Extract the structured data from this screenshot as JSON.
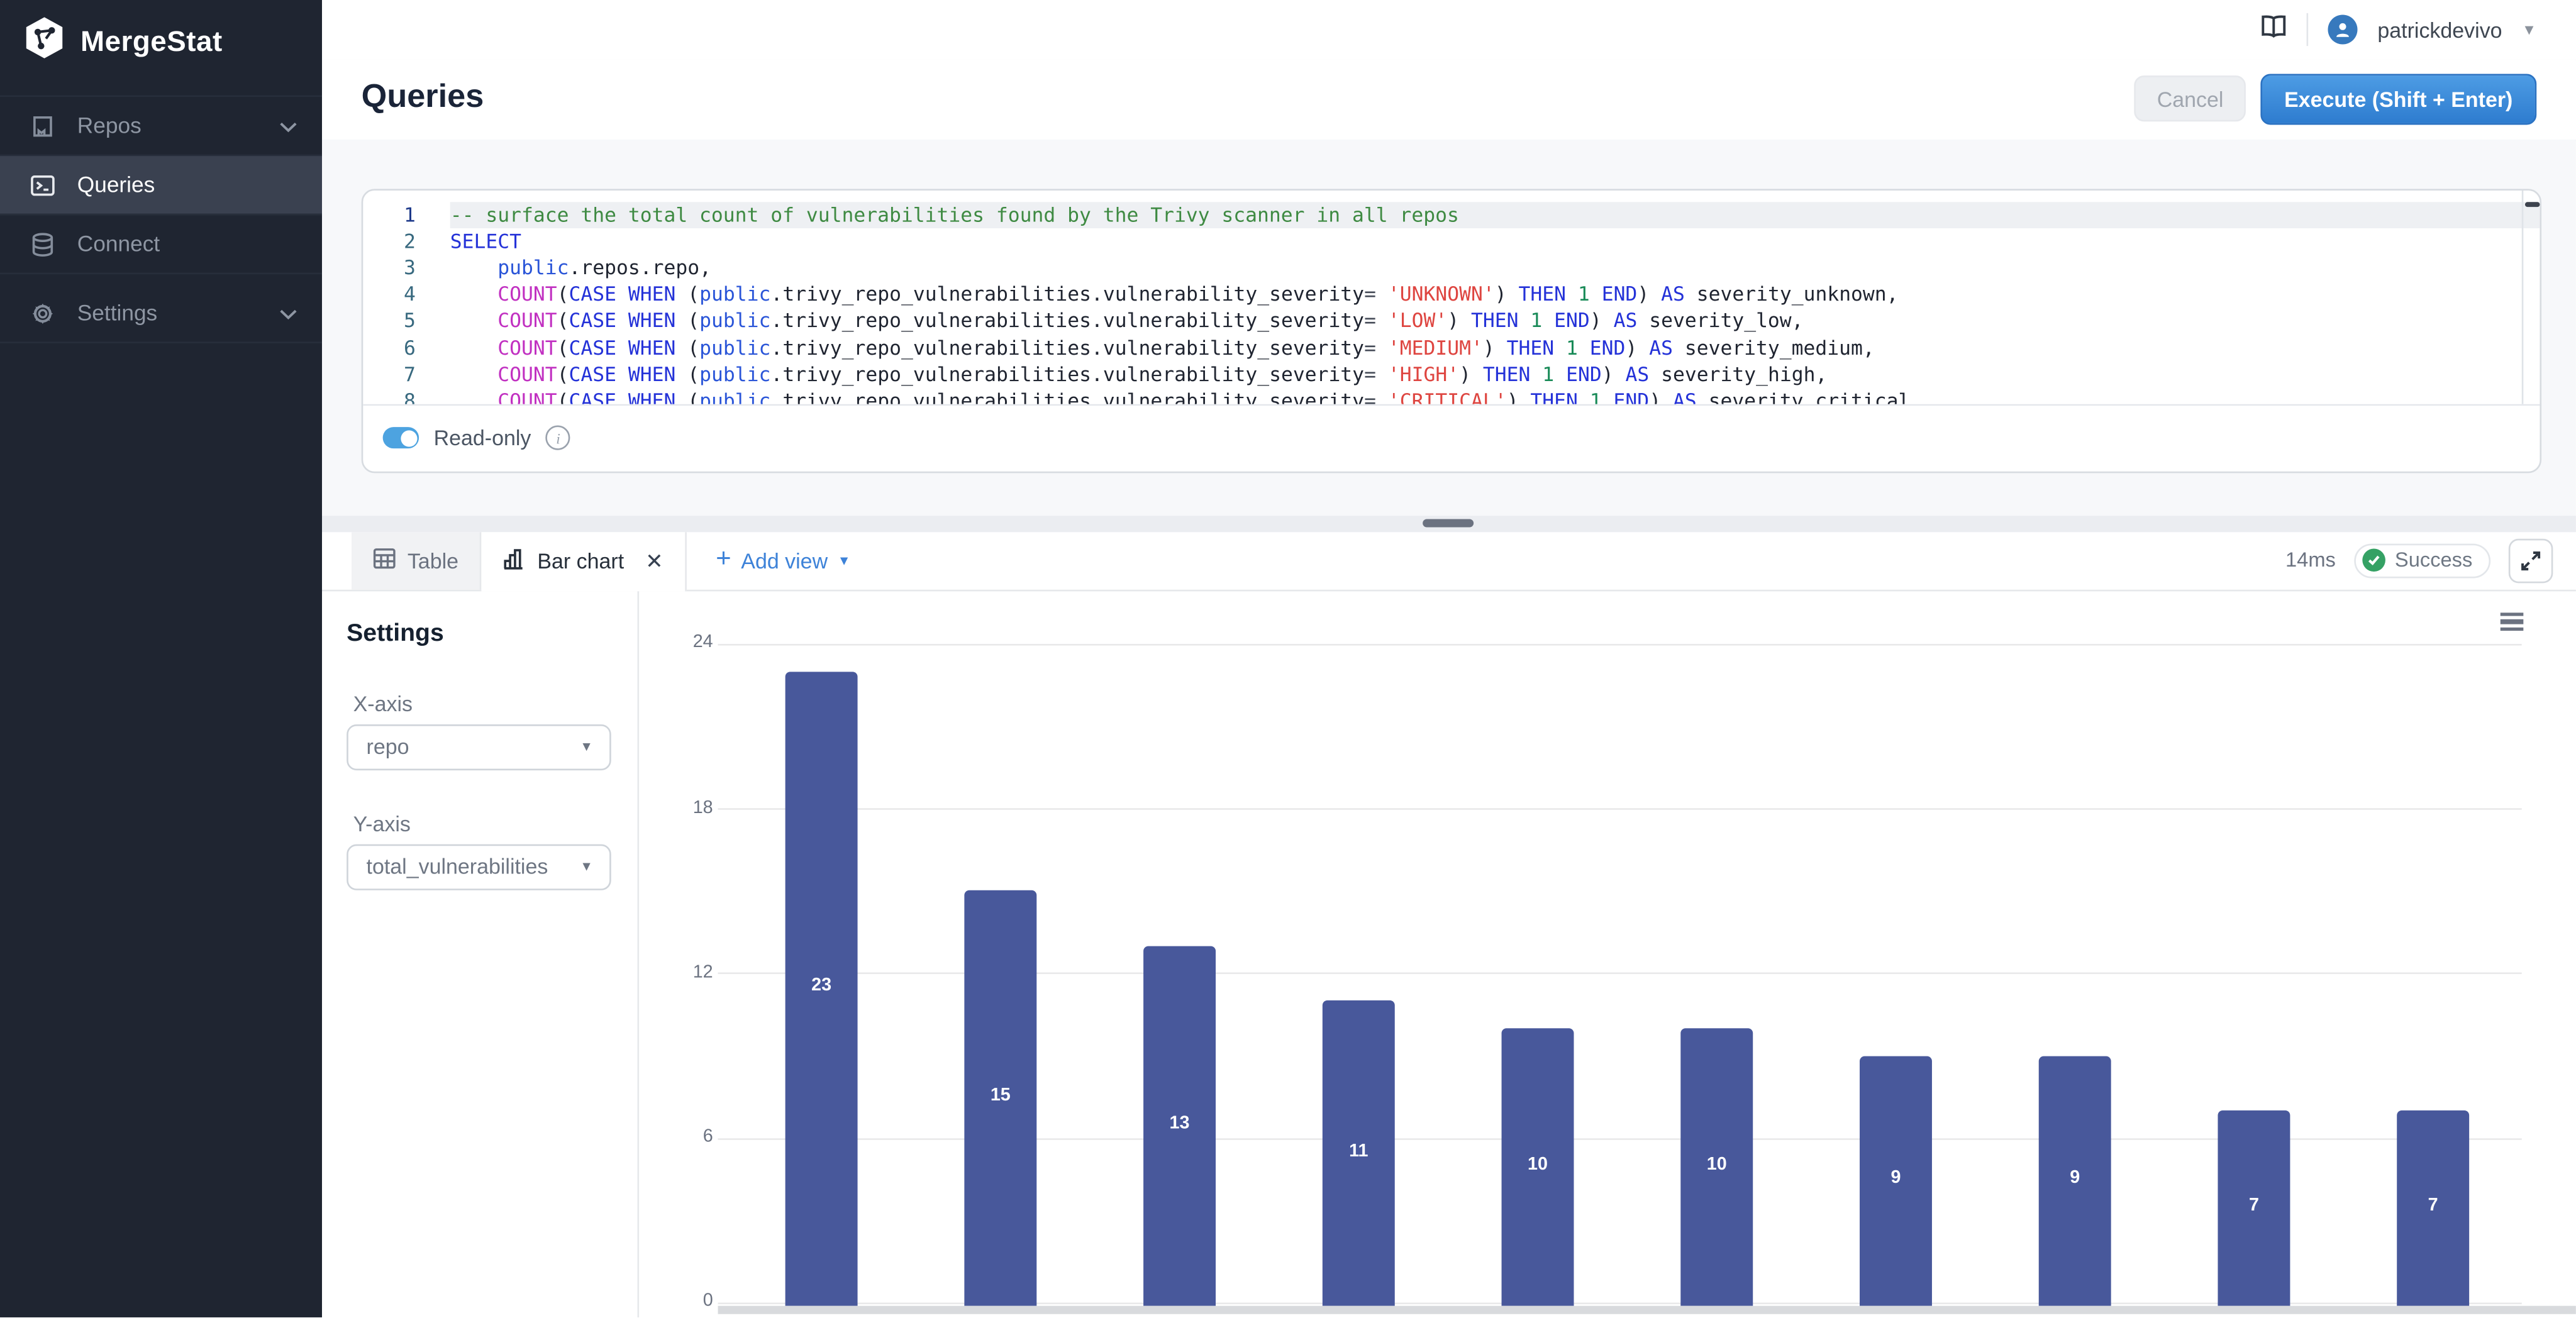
{
  "colors": {
    "accent_blue": "#3d82d8",
    "bar_color": "#48589b",
    "success_green": "#35a164",
    "sidebar_bg": "#1f2531",
    "execute_gradient_top": "#4d9ce4",
    "execute_gradient_bottom": "#2e7ccf"
  },
  "sidebar": {
    "logo_text": "MergeStat",
    "items": [
      {
        "label": "Repos",
        "icon": "book-icon",
        "has_chevron": true,
        "active": false
      },
      {
        "label": "Queries",
        "icon": "terminal-icon",
        "has_chevron": false,
        "active": true
      },
      {
        "label": "Connect",
        "icon": "database-icon",
        "has_chevron": false,
        "active": false
      },
      {
        "label": "Settings",
        "icon": "gear-icon",
        "has_chevron": true,
        "active": false
      }
    ]
  },
  "topbar": {
    "user": {
      "name": "patrickdevivo"
    }
  },
  "title_bar": {
    "title": "Queries",
    "cancel_label": "Cancel",
    "execute_label": "Execute (Shift + Enter)"
  },
  "editor": {
    "read_only_label": "Read-only",
    "active_line": 1,
    "lines": [
      [
        [
          "com",
          "-- surface the total count of vulnerabilities found by the Trivy scanner in all repos"
        ]
      ],
      [
        [
          "kw",
          "SELECT"
        ]
      ],
      [
        [
          "pl",
          "    "
        ],
        [
          "qual",
          "public"
        ],
        [
          "pl",
          ".repos.repo,"
        ]
      ],
      [
        [
          "pl",
          "    "
        ],
        [
          "fn",
          "COUNT"
        ],
        [
          "pl",
          "("
        ],
        [
          "kw",
          "CASE"
        ],
        [
          "pl",
          " "
        ],
        [
          "kw",
          "WHEN"
        ],
        [
          "pl",
          " ("
        ],
        [
          "qual",
          "public"
        ],
        [
          "pl",
          ".trivy_repo_vulnerabilities.vulnerability_severity"
        ],
        [
          "op",
          "="
        ],
        [
          "pl",
          " "
        ],
        [
          "str",
          "'UNKNOWN'"
        ],
        [
          "pl",
          ") "
        ],
        [
          "kw",
          "THEN"
        ],
        [
          "pl",
          " "
        ],
        [
          "num",
          "1"
        ],
        [
          "pl",
          " "
        ],
        [
          "kw",
          "END"
        ],
        [
          "pl",
          ") "
        ],
        [
          "kw",
          "AS"
        ],
        [
          "pl",
          " severity_unknown,"
        ]
      ],
      [
        [
          "pl",
          "    "
        ],
        [
          "fn",
          "COUNT"
        ],
        [
          "pl",
          "("
        ],
        [
          "kw",
          "CASE"
        ],
        [
          "pl",
          " "
        ],
        [
          "kw",
          "WHEN"
        ],
        [
          "pl",
          " ("
        ],
        [
          "qual",
          "public"
        ],
        [
          "pl",
          ".trivy_repo_vulnerabilities.vulnerability_severity"
        ],
        [
          "op",
          "="
        ],
        [
          "pl",
          " "
        ],
        [
          "str",
          "'LOW'"
        ],
        [
          "pl",
          ") "
        ],
        [
          "kw",
          "THEN"
        ],
        [
          "pl",
          " "
        ],
        [
          "num",
          "1"
        ],
        [
          "pl",
          " "
        ],
        [
          "kw",
          "END"
        ],
        [
          "pl",
          ") "
        ],
        [
          "kw",
          "AS"
        ],
        [
          "pl",
          " severity_low,"
        ]
      ],
      [
        [
          "pl",
          "    "
        ],
        [
          "fn",
          "COUNT"
        ],
        [
          "pl",
          "("
        ],
        [
          "kw",
          "CASE"
        ],
        [
          "pl",
          " "
        ],
        [
          "kw",
          "WHEN"
        ],
        [
          "pl",
          " ("
        ],
        [
          "qual",
          "public"
        ],
        [
          "pl",
          ".trivy_repo_vulnerabilities.vulnerability_severity"
        ],
        [
          "op",
          "="
        ],
        [
          "pl",
          " "
        ],
        [
          "str",
          "'MEDIUM'"
        ],
        [
          "pl",
          ") "
        ],
        [
          "kw",
          "THEN"
        ],
        [
          "pl",
          " "
        ],
        [
          "num",
          "1"
        ],
        [
          "pl",
          " "
        ],
        [
          "kw",
          "END"
        ],
        [
          "pl",
          ") "
        ],
        [
          "kw",
          "AS"
        ],
        [
          "pl",
          " severity_medium,"
        ]
      ],
      [
        [
          "pl",
          "    "
        ],
        [
          "fn",
          "COUNT"
        ],
        [
          "pl",
          "("
        ],
        [
          "kw",
          "CASE"
        ],
        [
          "pl",
          " "
        ],
        [
          "kw",
          "WHEN"
        ],
        [
          "pl",
          " ("
        ],
        [
          "qual",
          "public"
        ],
        [
          "pl",
          ".trivy_repo_vulnerabilities.vulnerability_severity"
        ],
        [
          "op",
          "="
        ],
        [
          "pl",
          " "
        ],
        [
          "str",
          "'HIGH'"
        ],
        [
          "pl",
          ") "
        ],
        [
          "kw",
          "THEN"
        ],
        [
          "pl",
          " "
        ],
        [
          "num",
          "1"
        ],
        [
          "pl",
          " "
        ],
        [
          "kw",
          "END"
        ],
        [
          "pl",
          ") "
        ],
        [
          "kw",
          "AS"
        ],
        [
          "pl",
          " severity_high,"
        ]
      ],
      [
        [
          "pl",
          "    "
        ],
        [
          "fn",
          "COUNT"
        ],
        [
          "pl",
          "("
        ],
        [
          "kw",
          "CASE"
        ],
        [
          "pl",
          " "
        ],
        [
          "kw",
          "WHEN"
        ],
        [
          "pl",
          " ("
        ],
        [
          "qual",
          "public"
        ],
        [
          "pl",
          ".trivy_repo_vulnerabilities.vulnerability_severity"
        ],
        [
          "op",
          "="
        ],
        [
          "pl",
          " "
        ],
        [
          "str",
          "'CRITICAL'"
        ],
        [
          "pl",
          ") "
        ],
        [
          "kw",
          "THEN"
        ],
        [
          "pl",
          " "
        ],
        [
          "num",
          "1"
        ],
        [
          "pl",
          " "
        ],
        [
          "kw",
          "END"
        ],
        [
          "pl",
          ") "
        ],
        [
          "kw",
          "AS"
        ],
        [
          "pl",
          " severity_critical"
        ]
      ]
    ]
  },
  "results": {
    "tabs": [
      {
        "label": "Table",
        "icon": "table-icon",
        "active": false
      },
      {
        "label": "Bar chart",
        "icon": "bar-chart-icon",
        "active": true,
        "closable": true
      }
    ],
    "add_view_label": "Add view",
    "duration": "14ms",
    "status": "Success"
  },
  "settings_panel": {
    "heading": "Settings",
    "x_axis": {
      "label": "X-axis",
      "value": "repo"
    },
    "y_axis": {
      "label": "Y-axis",
      "value": "total_vulnerabilities"
    }
  },
  "chart_data": {
    "type": "bar",
    "title": "",
    "categories": [
      "",
      "",
      "",
      "",
      "",
      "",
      "",
      "",
      "",
      ""
    ],
    "values": [
      23,
      15,
      13,
      11,
      10,
      10,
      9,
      9,
      7,
      7
    ],
    "data_labels": true,
    "xlabel": "",
    "ylabel": "",
    "ylim": [
      0,
      24
    ],
    "yticks": [
      24,
      18,
      12,
      6,
      0
    ],
    "grid": true,
    "legend": false,
    "bar_color": "#48589b",
    "x_labels_visible": false
  }
}
